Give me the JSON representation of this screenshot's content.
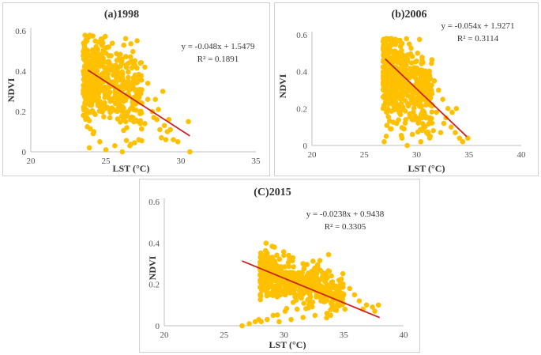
{
  "colors": {
    "points": "#ffc000",
    "point_edge": "#e0a800",
    "trend": "#cc2222",
    "axis": "#bfbfbf",
    "text": "#333333"
  },
  "chart_data": [
    {
      "type": "scatter",
      "title": "(a)1998",
      "xlabel": "LST (°C)",
      "ylabel": "NDVI",
      "xlim": [
        20,
        35
      ],
      "ylim": [
        0,
        0.6
      ],
      "xticks": [
        "20",
        "25",
        "30",
        "35"
      ],
      "yticks": [
        "0",
        "0.2",
        "0.4",
        "0.6"
      ],
      "grid": false,
      "trendline": {
        "slope": -0.048,
        "intercept": 1.5479,
        "x_range": [
          23.8,
          30.6
        ]
      },
      "equation": "y = -0.048x + 1.5479",
      "r_squared": "R² = 0.1891",
      "cluster": {
        "x_range": [
          23.5,
          27.4
        ],
        "x_center": 25.0,
        "y_center": 0.34,
        "y_spread": 0.1
      },
      "points": [
        [
          24.3,
          0.55
        ],
        [
          24.8,
          0.54
        ],
        [
          23.6,
          0.49
        ],
        [
          25.2,
          0.52
        ],
        [
          26.7,
          0.45
        ],
        [
          27.3,
          0.44
        ],
        [
          27.6,
          0.42
        ],
        [
          27.8,
          0.34
        ],
        [
          28.3,
          0.26
        ],
        [
          28.5,
          0.21
        ],
        [
          28.2,
          0.17
        ],
        [
          28.9,
          0.13
        ],
        [
          28.6,
          0.11
        ],
        [
          29.1,
          0.1
        ],
        [
          29.3,
          0.11
        ],
        [
          28.7,
          0.07
        ],
        [
          29.0,
          0.06
        ],
        [
          29.5,
          0.06
        ],
        [
          29.8,
          0.05
        ],
        [
          30.5,
          0.15
        ],
        [
          30.6,
          0.0
        ],
        [
          28.8,
          0.3
        ],
        [
          26.1,
          0.0
        ],
        [
          25.0,
          0.01
        ],
        [
          24.6,
          0.05
        ],
        [
          27.2,
          0.06
        ],
        [
          25.6,
          0.03
        ],
        [
          26.6,
          0.03
        ],
        [
          23.9,
          0.02
        ],
        [
          24.2,
          0.1
        ],
        [
          27.6,
          0.14
        ],
        [
          28.1,
          0.2
        ],
        [
          27.8,
          0.26
        ],
        [
          26.4,
          0.12
        ],
        [
          28.4,
          0.16
        ],
        [
          29.2,
          0.16
        ]
      ]
    },
    {
      "type": "scatter",
      "title": "(b)2006",
      "xlabel": "LST (°C)",
      "ylabel": "NDVI",
      "xlim": [
        20,
        40
      ],
      "ylim": [
        0,
        0.6
      ],
      "xticks": [
        "20",
        "25",
        "30",
        "35",
        "40"
      ],
      "yticks": [
        "0",
        "0.2",
        "0.4",
        "0.6"
      ],
      "grid": false,
      "trendline": {
        "slope": -0.054,
        "intercept": 1.9271,
        "x_range": [
          27.0,
          34.8
        ]
      },
      "equation": "y = -0.054x + 1.9271",
      "r_squared": "R² = 0.3114",
      "cluster": {
        "x_range": [
          26.8,
          31.5
        ],
        "x_center": 28.5,
        "y_center": 0.36,
        "y_spread": 0.11
      },
      "points": [
        [
          27.1,
          0.58
        ],
        [
          27.6,
          0.58
        ],
        [
          28.4,
          0.57
        ],
        [
          29.3,
          0.55
        ],
        [
          30.1,
          0.5
        ],
        [
          30.6,
          0.45
        ],
        [
          31.2,
          0.4
        ],
        [
          31.7,
          0.35
        ],
        [
          32.1,
          0.3
        ],
        [
          32.5,
          0.25
        ],
        [
          33.0,
          0.2
        ],
        [
          33.4,
          0.18
        ],
        [
          33.8,
          0.2
        ],
        [
          32.8,
          0.15
        ],
        [
          33.3,
          0.1
        ],
        [
          33.7,
          0.07
        ],
        [
          34.1,
          0.04
        ],
        [
          34.4,
          0.02
        ],
        [
          34.9,
          0.04
        ],
        [
          31.6,
          0.08
        ],
        [
          31.3,
          0.05
        ],
        [
          30.8,
          0.1
        ],
        [
          29.6,
          0.06
        ],
        [
          28.6,
          0.04
        ],
        [
          27.5,
          0.09
        ],
        [
          27.1,
          0.05
        ],
        [
          26.9,
          0.02
        ],
        [
          29.1,
          0.0
        ],
        [
          30.4,
          0.02
        ],
        [
          28.1,
          0.12
        ],
        [
          32.6,
          0.12
        ],
        [
          31.9,
          0.18
        ],
        [
          30.9,
          0.22
        ],
        [
          29.8,
          0.14
        ],
        [
          28.8,
          0.09
        ],
        [
          32.3,
          0.07
        ]
      ]
    },
    {
      "type": "scatter",
      "title": "(C)2015",
      "xlabel": "LST (°C)",
      "ylabel": "NDVI",
      "xlim": [
        20,
        40
      ],
      "ylim": [
        0,
        0.6
      ],
      "xticks": [
        "20",
        "25",
        "30",
        "35",
        "40"
      ],
      "yticks": [
        "0",
        "0.2",
        "0.4",
        "0.6"
      ],
      "grid": false,
      "trendline": {
        "slope": -0.0238,
        "intercept": 0.9438,
        "x_range": [
          26.5,
          38.0
        ]
      },
      "equation": "y = -0.0238x + 0.9438",
      "r_squared": "R² = 0.3305",
      "cluster": {
        "x_range": [
          28.0,
          35.0
        ],
        "x_center": 31.0,
        "y_center": 0.21,
        "y_spread": 0.05
      },
      "points": [
        [
          29.2,
          0.38
        ],
        [
          28.6,
          0.35
        ],
        [
          30.4,
          0.34
        ],
        [
          31.6,
          0.3
        ],
        [
          34.6,
          0.22
        ],
        [
          35.5,
          0.18
        ],
        [
          35.9,
          0.15
        ],
        [
          36.3,
          0.12
        ],
        [
          36.9,
          0.1
        ],
        [
          37.4,
          0.09
        ],
        [
          37.9,
          0.1
        ],
        [
          37.6,
          0.07
        ],
        [
          36.6,
          0.08
        ],
        [
          35.1,
          0.08
        ],
        [
          33.6,
          0.06
        ],
        [
          32.6,
          0.05
        ],
        [
          31.6,
          0.04
        ],
        [
          30.6,
          0.03
        ],
        [
          29.6,
          0.02
        ],
        [
          28.6,
          0.03
        ],
        [
          27.6,
          0.02
        ],
        [
          27.1,
          0.01
        ],
        [
          26.5,
          0.0
        ],
        [
          29.1,
          0.05
        ],
        [
          30.1,
          0.07
        ],
        [
          31.1,
          0.08
        ],
        [
          32.1,
          0.1
        ],
        [
          33.1,
          0.12
        ],
        [
          34.1,
          0.1
        ],
        [
          28.1,
          0.02
        ],
        [
          27.9,
          0.03
        ],
        [
          33.8,
          0.16
        ],
        [
          34.9,
          0.13
        ],
        [
          32.9,
          0.18
        ]
      ]
    }
  ]
}
